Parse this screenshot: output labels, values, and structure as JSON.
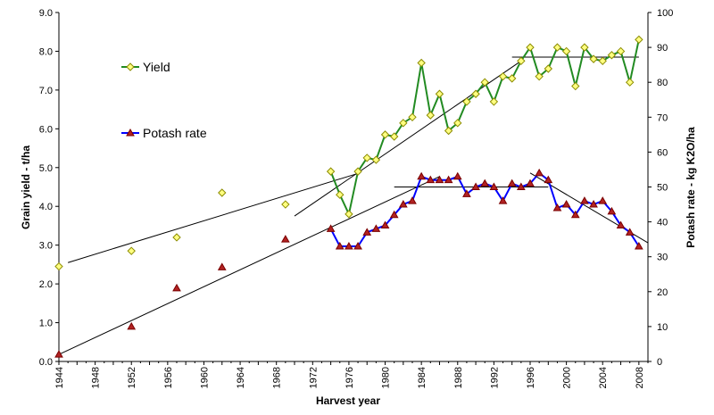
{
  "chart_data": {
    "type": "line",
    "title": "",
    "xlabel": "Harvest year",
    "ylabel_left": "Grain yield - t/ha",
    "ylabel_right": "Potash rate - kg K2O/ha",
    "xlim": [
      1944,
      2009
    ],
    "ylim_left": [
      0,
      9
    ],
    "ylim_right": [
      0,
      100
    ],
    "x_ticks": [
      "1944",
      "1948",
      "1952",
      "1956",
      "1960",
      "1964",
      "1968",
      "1972",
      "1976",
      "1980",
      "1984",
      "1988",
      "1992",
      "1996",
      "2000",
      "2004",
      "2008"
    ],
    "y_left_ticks": [
      "0.0",
      "1.0",
      "2.0",
      "3.0",
      "4.0",
      "5.0",
      "6.0",
      "7.0",
      "8.0",
      "9.0"
    ],
    "y_right_ticks": [
      "0",
      "10",
      "20",
      "30",
      "40",
      "50",
      "60",
      "70",
      "80",
      "90",
      "100"
    ],
    "grid": false,
    "legend_position": "upper-left",
    "series": [
      {
        "name": "Yield",
        "axis": "left",
        "color": "#228B22",
        "marker": "diamond",
        "marker_fill": "#FFFF80",
        "marker_stroke": "#8B8B00",
        "points_x": [
          1944,
          1952,
          1957,
          1962,
          1969
        ],
        "points_y": [
          2.45,
          2.85,
          3.2,
          4.35,
          4.05
        ],
        "x": [
          1974,
          1975,
          1976,
          1977,
          1978,
          1979,
          1980,
          1981,
          1982,
          1983,
          1984,
          1985,
          1986,
          1987,
          1988,
          1989,
          1990,
          1991,
          1992,
          1993,
          1994,
          1995,
          1996,
          1997,
          1998,
          1999,
          2000,
          2001,
          2002,
          2003,
          2004,
          2005,
          2006,
          2007,
          2008
        ],
        "y": [
          4.9,
          4.3,
          3.8,
          4.9,
          5.25,
          5.2,
          5.85,
          5.8,
          6.15,
          6.3,
          7.7,
          6.35,
          6.9,
          5.95,
          6.15,
          6.7,
          6.9,
          7.2,
          6.7,
          7.35,
          7.3,
          7.75,
          8.1,
          7.35,
          7.55,
          8.1,
          8.0,
          7.1,
          8.1,
          7.8,
          7.75,
          7.9,
          8.0,
          7.2,
          8.3
        ]
      },
      {
        "name": "Potash rate",
        "axis": "right",
        "color": "#0000FF",
        "marker": "triangle",
        "marker_fill": "#B22222",
        "marker_stroke": "#7A0000",
        "points_x": [
          1944,
          1952,
          1957,
          1962,
          1969
        ],
        "points_y": [
          2,
          10,
          21,
          27,
          35
        ],
        "x": [
          1974,
          1975,
          1976,
          1977,
          1978,
          1979,
          1980,
          1981,
          1982,
          1983,
          1984,
          1985,
          1986,
          1987,
          1988,
          1989,
          1990,
          1991,
          1992,
          1993,
          1994,
          1995,
          1996,
          1997,
          1998,
          1999,
          2000,
          2001,
          2002,
          2003,
          2004,
          2005,
          2006,
          2007,
          2008
        ],
        "y": [
          38,
          33,
          33,
          33,
          37,
          38,
          39,
          42,
          45,
          46,
          53,
          52,
          52,
          52,
          53,
          48,
          50,
          51,
          50,
          46,
          51,
          50,
          51,
          54,
          52,
          44,
          45,
          42,
          46,
          45,
          46,
          43,
          39,
          37,
          33
        ]
      }
    ],
    "trendlines": [
      {
        "axis": "left",
        "x1": 1945,
        "y1": 2.55,
        "x2": 1977,
        "y2": 4.85
      },
      {
        "axis": "left",
        "x1": 1970,
        "y1": 3.75,
        "x2": 1995,
        "y2": 7.75
      },
      {
        "axis": "left",
        "x1": 1994,
        "y1": 7.85,
        "x2": 2008,
        "y2": 7.85
      },
      {
        "axis": "right",
        "x1": 1944,
        "y1": 2,
        "x2": 1986,
        "y2": 53
      },
      {
        "axis": "right",
        "x1": 1981,
        "y1": 50,
        "x2": 1998,
        "y2": 50
      },
      {
        "axis": "right",
        "x1": 1996,
        "y1": 54,
        "x2": 2009,
        "y2": 34
      }
    ]
  }
}
